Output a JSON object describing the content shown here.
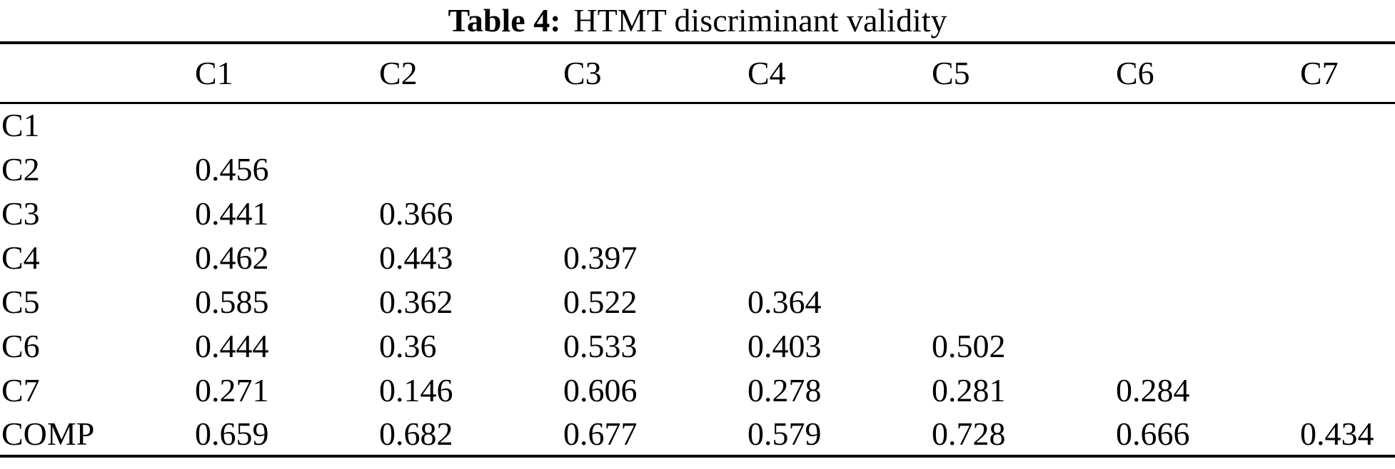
{
  "caption": {
    "label": "Table 4:",
    "title": "HTMT discriminant validity"
  },
  "table": {
    "corner": "",
    "col_headers": [
      "C1",
      "C2",
      "C3",
      "C4",
      "C5",
      "C6",
      "C7"
    ],
    "rows": [
      {
        "label": "C1",
        "values": [
          "",
          "",
          "",
          "",
          "",
          "",
          ""
        ]
      },
      {
        "label": "C2",
        "values": [
          "0.456",
          "",
          "",
          "",
          "",
          "",
          ""
        ]
      },
      {
        "label": "C3",
        "values": [
          "0.441",
          "0.366",
          "",
          "",
          "",
          "",
          ""
        ]
      },
      {
        "label": "C4",
        "values": [
          "0.462",
          "0.443",
          "0.397",
          "",
          "",
          "",
          ""
        ]
      },
      {
        "label": "C5",
        "values": [
          "0.585",
          "0.362",
          "0.522",
          "0.364",
          "",
          "",
          ""
        ]
      },
      {
        "label": "C6",
        "values": [
          "0.444",
          "0.36",
          "0.533",
          "0.403",
          "0.502",
          "",
          ""
        ]
      },
      {
        "label": "C7",
        "values": [
          "0.271",
          "0.146",
          "0.606",
          "0.278",
          "0.281",
          "0.284",
          ""
        ]
      },
      {
        "label": "COMP",
        "values": [
          "0.659",
          "0.682",
          "0.677",
          "0.579",
          "0.728",
          "0.666",
          "0.434"
        ]
      }
    ]
  },
  "colors": {
    "text": "#000000",
    "background": "#ffffff",
    "rule": "#000000"
  },
  "chart_data": {
    "type": "table",
    "title": "Table 4: HTMT discriminant validity",
    "columns": [
      "",
      "C1",
      "C2",
      "C3",
      "C4",
      "C5",
      "C6",
      "C7"
    ],
    "rows": [
      [
        "C1",
        null,
        null,
        null,
        null,
        null,
        null,
        null
      ],
      [
        "C2",
        0.456,
        null,
        null,
        null,
        null,
        null,
        null
      ],
      [
        "C3",
        0.441,
        0.366,
        null,
        null,
        null,
        null,
        null
      ],
      [
        "C4",
        0.462,
        0.443,
        0.397,
        null,
        null,
        null,
        null
      ],
      [
        "C5",
        0.585,
        0.362,
        0.522,
        0.364,
        null,
        null,
        null
      ],
      [
        "C6",
        0.444,
        0.36,
        0.533,
        0.403,
        0.502,
        null,
        null
      ],
      [
        "C7",
        0.271,
        0.146,
        0.606,
        0.278,
        0.281,
        0.284,
        null
      ],
      [
        "COMP",
        0.659,
        0.682,
        0.677,
        0.579,
        0.728,
        0.666,
        0.434
      ]
    ]
  }
}
